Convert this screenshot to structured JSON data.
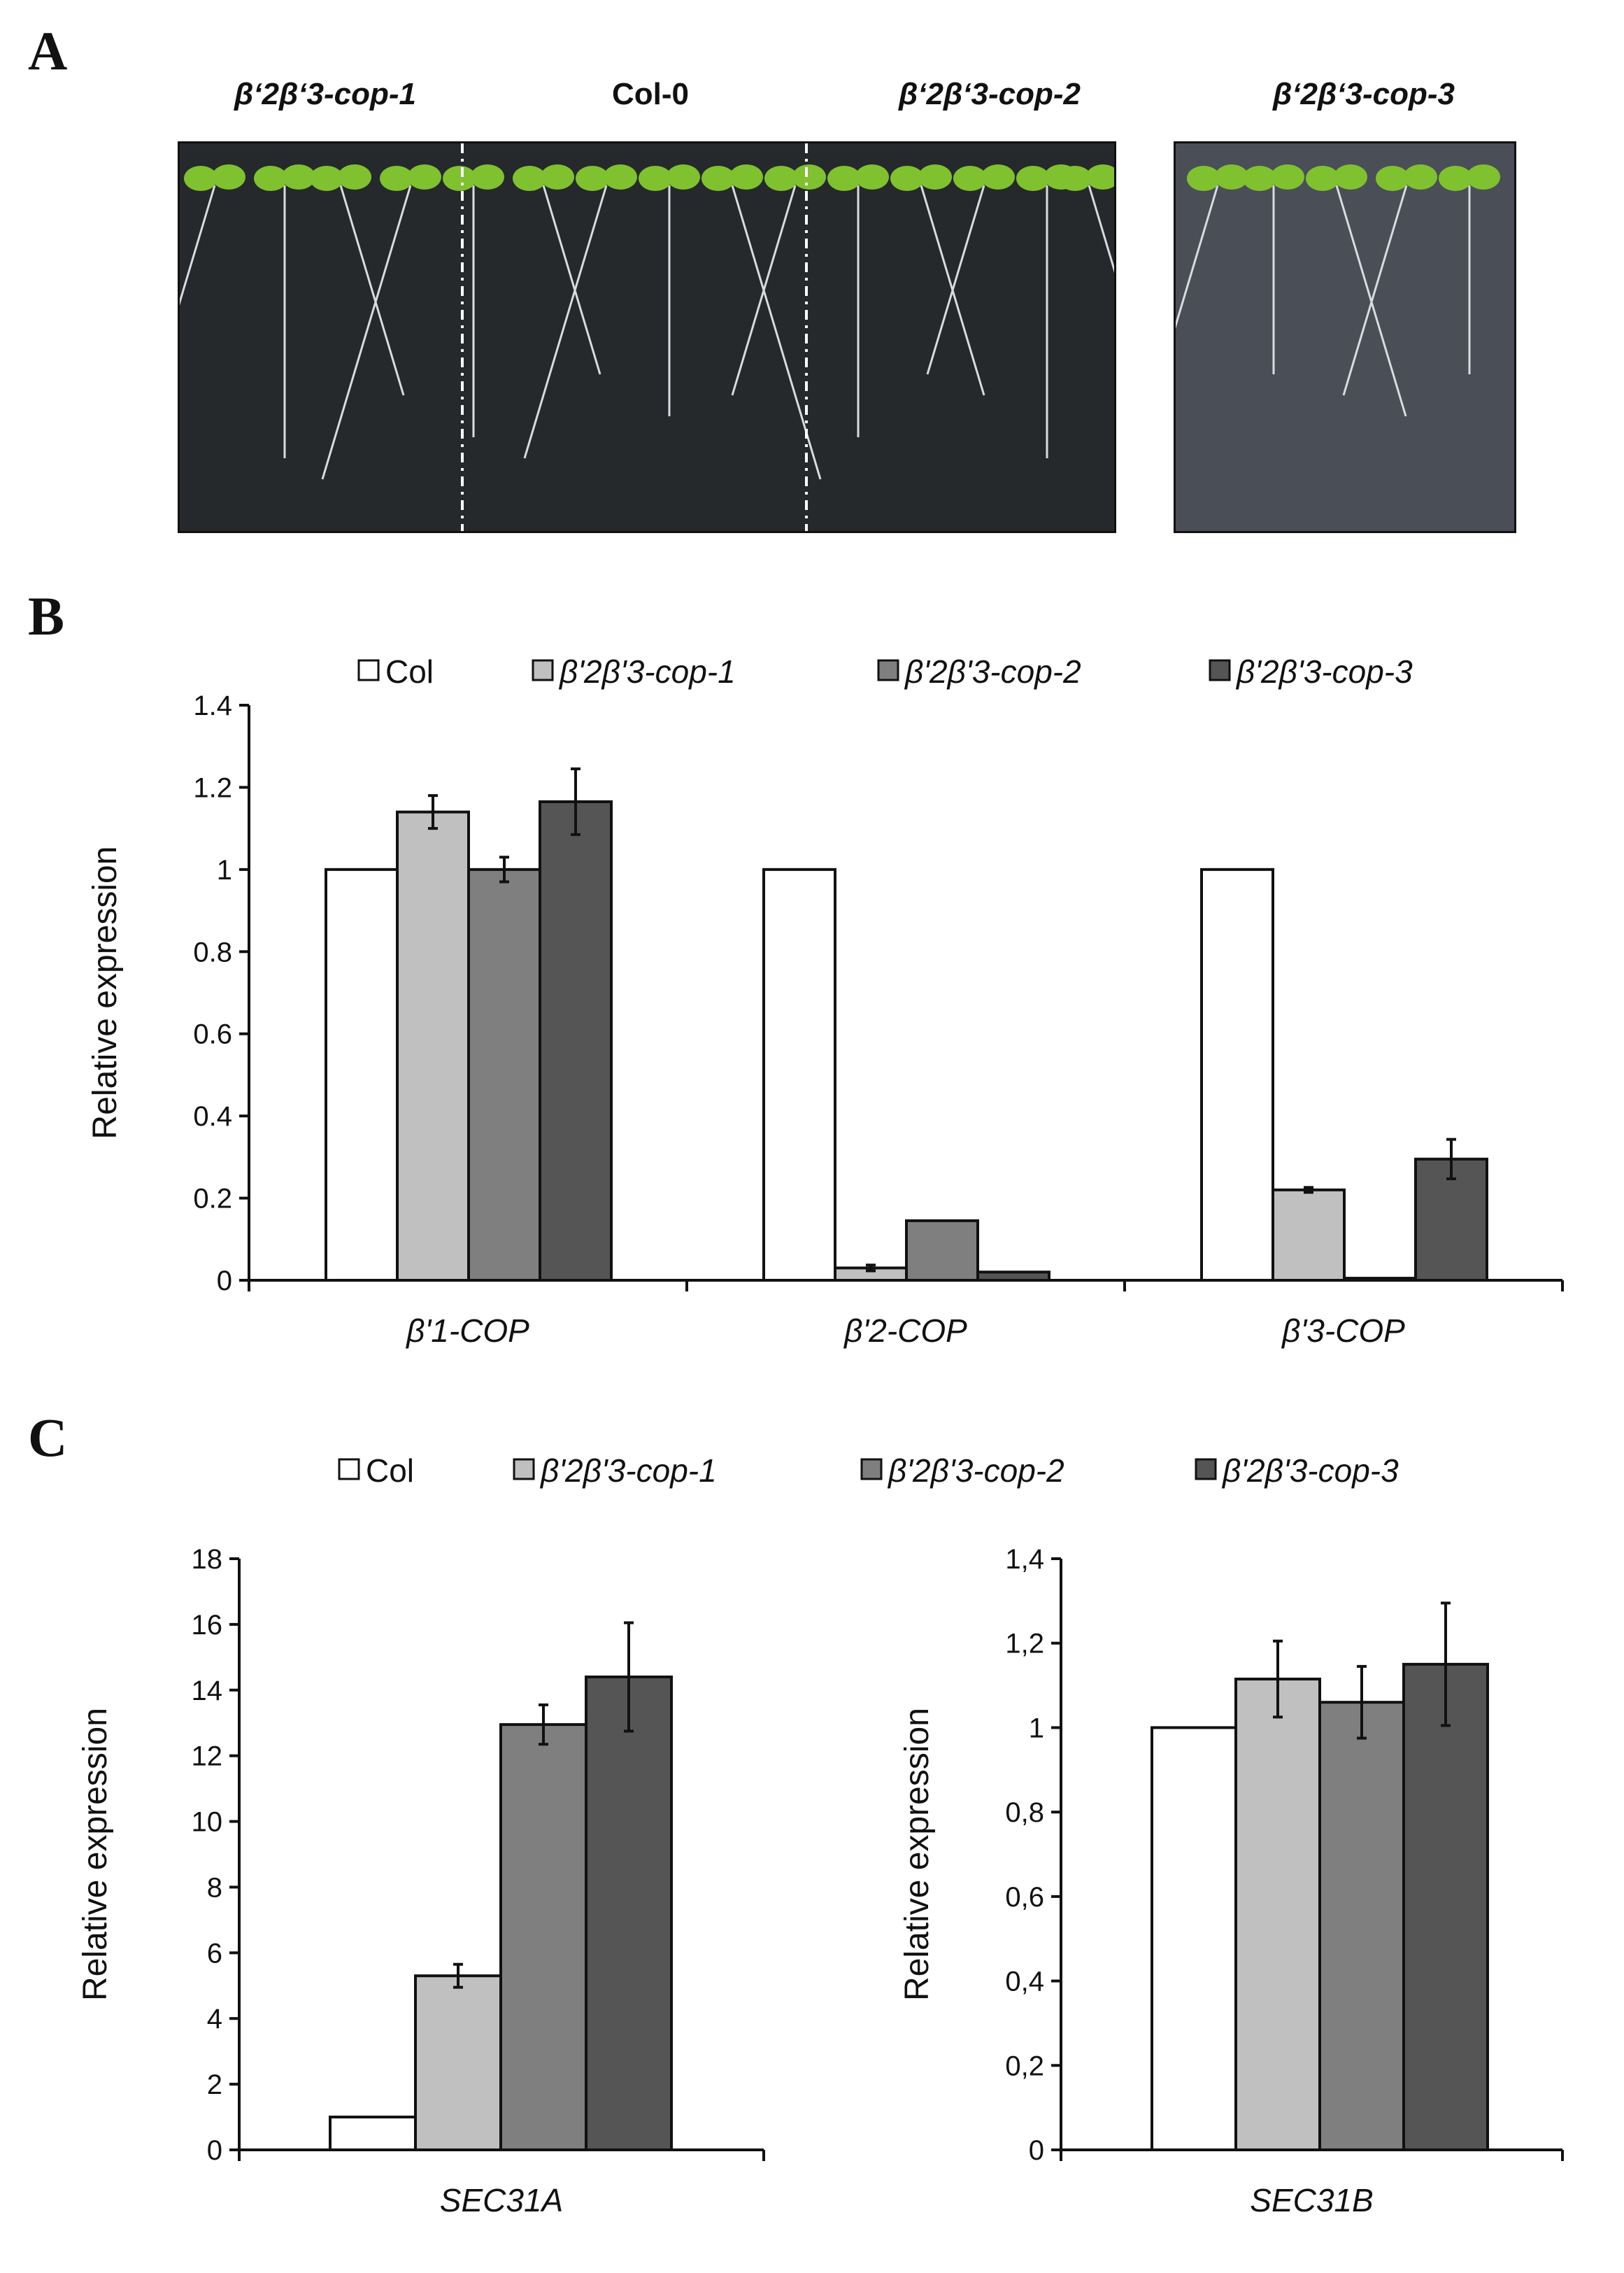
{
  "panels": {
    "a": "A",
    "b": "B",
    "c": "C"
  },
  "photo_labels": [
    "β‘2β‘3-cop-1",
    "Col-0",
    "β‘2β‘3-cop-2",
    "β‘2β‘3-cop-3"
  ],
  "colors": {
    "col": "#ffffff",
    "cop1": "#c0c0c0",
    "cop2": "#7f7f7f",
    "cop3": "#555555",
    "photo_bg": "#26292c",
    "photo2_bg": "#4a4f57",
    "leaf": "#7fc12e"
  },
  "legend_b": [
    "Col",
    "β'2β'3-cop-1",
    "β'2β'3-cop-2",
    "β'2β'3-cop-3"
  ],
  "legend_c": [
    "Col",
    "β'2β'3-cop-1",
    "β'2β'3-cop-2",
    "β'2β'3-cop-3"
  ],
  "chart_data": [
    {
      "type": "bar",
      "panel": "B",
      "categories": [
        "β'1-COP",
        "β'2-COP",
        "β'3-COP"
      ],
      "ylabel": "Relative expression",
      "ylim": [
        0,
        1.4
      ],
      "yticks": [
        "0",
        "0.2",
        "0.4",
        "0.6",
        "0.8",
        "1",
        "1.2",
        "1.4"
      ],
      "series": [
        {
          "name": "Col",
          "values": [
            1.0,
            1.0,
            1.0
          ],
          "errors": [
            0,
            0,
            0
          ]
        },
        {
          "name": "β'2β'3-cop-1",
          "values": [
            1.14,
            0.03,
            0.22
          ],
          "errors": [
            0.04,
            0.007,
            0.006
          ]
        },
        {
          "name": "β'2β'3-cop-2",
          "values": [
            1.0,
            0.145,
            0.005
          ],
          "errors": [
            0.03,
            0,
            0
          ]
        },
        {
          "name": "β'2β'3-cop-3",
          "values": [
            1.165,
            0.02,
            0.295
          ],
          "errors": [
            0.08,
            0,
            0.048
          ]
        }
      ]
    },
    {
      "type": "bar",
      "panel": "C",
      "categories": [
        "SEC31A"
      ],
      "ylabel": "Relative expression",
      "ylim": [
        0,
        18
      ],
      "yticks": [
        "0",
        "2",
        "4",
        "6",
        "8",
        "10",
        "12",
        "14",
        "16",
        "18"
      ],
      "series": [
        {
          "name": "Col",
          "values": [
            1.0
          ],
          "errors": [
            0
          ]
        },
        {
          "name": "β'2β'3-cop-1",
          "values": [
            5.3
          ],
          "errors": [
            0.35
          ]
        },
        {
          "name": "β'2β'3-cop-2",
          "values": [
            12.95
          ],
          "errors": [
            0.6
          ]
        },
        {
          "name": "β'2β'3-cop-3",
          "values": [
            14.4
          ],
          "errors": [
            1.65
          ]
        }
      ]
    },
    {
      "type": "bar",
      "panel": "C",
      "categories": [
        "SEC31B"
      ],
      "ylabel": "Relative expression",
      "ylim": [
        0,
        1.4
      ],
      "yticks": [
        "0",
        "0,2",
        "0,4",
        "0,6",
        "0,8",
        "1",
        "1,2",
        "1,4"
      ],
      "series": [
        {
          "name": "Col",
          "values": [
            1.0
          ],
          "errors": [
            0
          ]
        },
        {
          "name": "β'2β'3-cop-1",
          "values": [
            1.115
          ],
          "errors": [
            0.09
          ]
        },
        {
          "name": "β'2β'3-cop-2",
          "values": [
            1.06
          ],
          "errors": [
            0.085
          ]
        },
        {
          "name": "β'2β'3-cop-3",
          "values": [
            1.15
          ],
          "errors": [
            0.145
          ]
        }
      ]
    }
  ]
}
